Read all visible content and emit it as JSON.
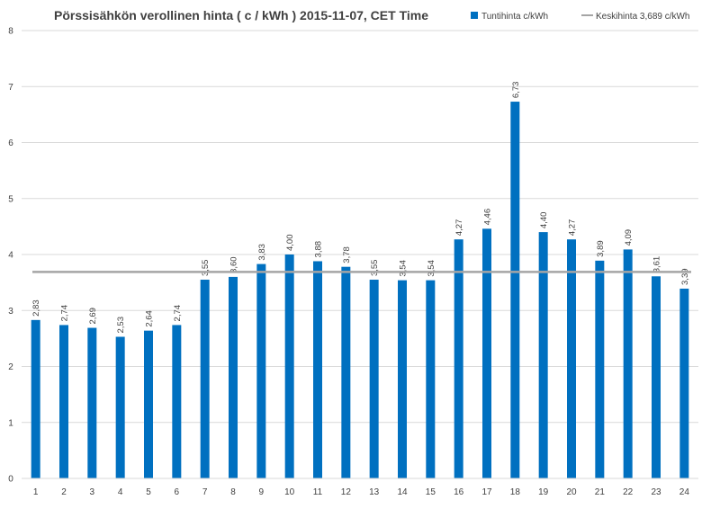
{
  "chart_data": {
    "type": "bar",
    "title": "Pörssisähkön verollinen hinta ( c / kWh ) 2015-11-07, CET Time",
    "xlabel": "",
    "ylabel": "",
    "ylim": [
      0,
      8
    ],
    "yticks": [
      "0",
      "1",
      "2",
      "3",
      "4",
      "5",
      "6",
      "7",
      "8"
    ],
    "categories": [
      "1",
      "2",
      "3",
      "4",
      "5",
      "6",
      "7",
      "8",
      "9",
      "10",
      "11",
      "12",
      "13",
      "14",
      "15",
      "16",
      "17",
      "18",
      "19",
      "20",
      "21",
      "22",
      "23",
      "24"
    ],
    "series": [
      {
        "name": "Tuntihinta c/kWh",
        "type": "bar",
        "color": "#0070c0",
        "values": [
          2.83,
          2.74,
          2.69,
          2.53,
          2.64,
          2.74,
          3.55,
          3.6,
          3.83,
          4.0,
          3.88,
          3.78,
          3.55,
          3.54,
          3.54,
          4.27,
          4.46,
          6.73,
          4.4,
          4.27,
          3.89,
          4.09,
          3.61,
          3.39
        ],
        "labels": [
          "2,83",
          "2,74",
          "2,69",
          "2,53",
          "2,64",
          "2,74",
          "3,55",
          "3,60",
          "3,83",
          "4,00",
          "3,88",
          "3,78",
          "3,55",
          "3,54",
          "3,54",
          "4,27",
          "4,46",
          "6,73",
          "4,40",
          "4,27",
          "3,89",
          "4,09",
          "3,61",
          "3,39"
        ]
      },
      {
        "name": "Keskihinta 3,689 c/kWh",
        "type": "line",
        "color": "#a5a5a5",
        "value": 3.689
      }
    ],
    "grid": true,
    "legend_position": "top-right"
  }
}
